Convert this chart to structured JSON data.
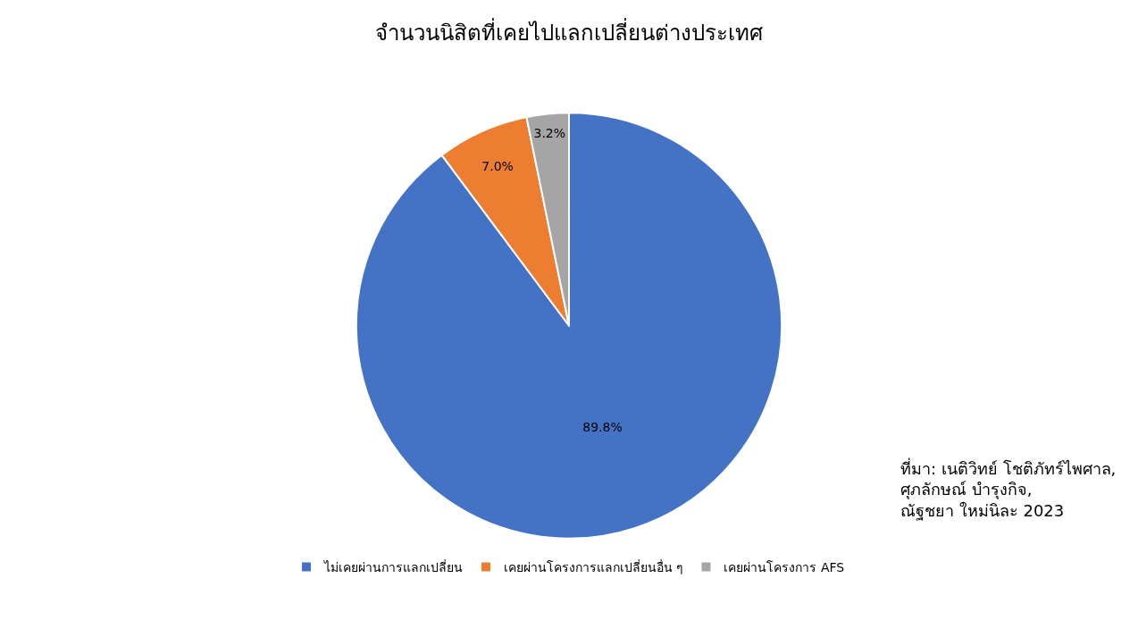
{
  "chart_data": {
    "type": "pie",
    "title": "จำนวนนิสิตที่เคยไปแลกเปลี่ยนต่างประเทศ",
    "categories": [
      "ไม่เคยผ่านการแลกเปลี่ยน",
      "เคยผ่านโครงการแลกเปลี่ยนอื่น ๆ",
      "เคยผ่านโครงการ AFS"
    ],
    "values": [
      89.8,
      7.0,
      3.2
    ],
    "value_labels": [
      "89.8%",
      "7.0%",
      "3.2%"
    ],
    "colors": [
      "#4472c4",
      "#ed7d31",
      "#a5a5a5"
    ],
    "legend": "bottom",
    "annotations": [
      "ที่มา: เนติวิทย์ โชติภัทร์ไพศาล,\nศุภลักษณ์ บำรุงกิจ,\nณัฐชยา ใหม่นิละ 2023"
    ]
  }
}
